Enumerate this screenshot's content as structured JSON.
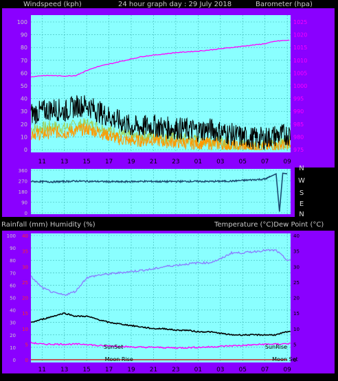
{
  "header": {
    "left_title": "Windspeed (kph)",
    "center_title": "24 hour graph day : 29 July 2018",
    "right_title": "Barometer (hpa)"
  },
  "lower_header": {
    "left_title": "Rainfall (mm)  Humidity (%)",
    "right_title": "Temperature (°C)Dew Point (°C)"
  },
  "time_ticks": [
    "11",
    "13",
    "15",
    "17",
    "19",
    "21",
    "23",
    "01",
    "03",
    "05",
    "07",
    "09"
  ],
  "direction_letters": [
    "N",
    "W",
    "S",
    "E",
    "N"
  ],
  "colors": {
    "background": "#000000",
    "panel_border": "#8a00ff",
    "plot_bg": "#8affff",
    "grid": "#3cb4b4",
    "wind_gust": "#000000",
    "wind_avg": "#ff9900",
    "wind_mid": "#a0d050",
    "barometer": "#ff00ff",
    "left_axis_red": "#ff2a2a",
    "temperature": "#000000",
    "humidity": "#8a80ff",
    "dewpoint": "#ff00ff",
    "rain": "#cc2222",
    "wind_dir": "#1a4a70"
  },
  "chart_data": [
    {
      "type": "line",
      "name": "wind-barometer",
      "x_ticks": [
        "11",
        "13",
        "15",
        "17",
        "19",
        "21",
        "23",
        "01",
        "03",
        "05",
        "07",
        "09"
      ],
      "y_left": {
        "label": "Windspeed (kph)",
        "ylim": [
          0,
          100
        ],
        "ticks": [
          0,
          10,
          20,
          30,
          40,
          50,
          60,
          70,
          80,
          90,
          100
        ]
      },
      "y_right": {
        "label": "Barometer (hpa)",
        "ylim": [
          975,
          1025
        ],
        "ticks": [
          975,
          980,
          985,
          990,
          995,
          1000,
          1005,
          1010,
          1015,
          1020,
          1025
        ]
      },
      "grid": true,
      "series": [
        {
          "hours": [
            10,
            11,
            12,
            13,
            14,
            15,
            16,
            17,
            18,
            19,
            20,
            21,
            22,
            23,
            24,
            25,
            26,
            27,
            28,
            29,
            30,
            31,
            32,
            33
          ],
          "values": [
            28,
            30,
            32,
            30,
            34,
            35,
            30,
            26,
            22,
            18,
            18,
            19,
            17,
            17,
            16,
            15,
            16,
            14,
            12,
            10,
            9,
            9,
            11,
            12
          ]
        },
        {
          "hours": [
            10,
            11,
            12,
            13,
            14,
            15,
            16,
            17,
            18,
            19,
            20,
            21,
            22,
            23,
            24,
            25,
            26,
            27,
            28,
            29,
            30,
            31,
            32,
            33
          ],
          "values": [
            13,
            12,
            14,
            13,
            15,
            16,
            14,
            11,
            8,
            7,
            7,
            8,
            6,
            6,
            5,
            5,
            5,
            4,
            3,
            2,
            2,
            2,
            3,
            4
          ]
        },
        {
          "hours": [
            10,
            11,
            12,
            13,
            14,
            15,
            16,
            17,
            18,
            19,
            20,
            21,
            22,
            23,
            24,
            25,
            26,
            27,
            28,
            29,
            30,
            31,
            32,
            33
          ],
          "values": [
            16,
            17,
            18,
            17,
            19,
            20,
            18,
            15,
            12,
            10,
            10,
            11,
            9,
            9,
            8,
            7,
            8,
            6,
            5,
            4,
            4,
            4,
            5,
            6
          ]
        },
        {
          "hours": [
            10,
            11,
            12,
            13,
            14,
            15,
            16,
            17,
            18,
            19,
            20,
            21,
            22,
            23,
            24,
            25,
            26,
            27,
            28,
            29,
            30,
            31,
            32,
            33
          ],
          "values": [
            1003.5,
            1004.0,
            1004.0,
            1003.8,
            1004.0,
            1006.0,
            1007.5,
            1008.5,
            1009.5,
            1010.5,
            1011.5,
            1012.0,
            1012.5,
            1013.0,
            1013.3,
            1013.6,
            1014.0,
            1014.5,
            1015.0,
            1015.5,
            1016.0,
            1016.5,
            1017.5,
            1017.8
          ]
        }
      ]
    },
    {
      "type": "line",
      "name": "wind-direction",
      "x_ticks": [
        "11",
        "13",
        "15",
        "17",
        "19",
        "21",
        "23",
        "01",
        "03",
        "05",
        "07",
        "09"
      ],
      "y_left": {
        "ylim": [
          0,
          360
        ],
        "ticks": [
          0,
          90,
          180,
          270,
          360
        ]
      },
      "series": [
        {
          "hours": [
            10,
            12,
            14,
            16,
            18,
            20,
            22,
            24,
            26,
            28,
            30,
            31,
            32,
            32.3,
            32.6,
            33
          ],
          "values": [
            265,
            262,
            268,
            265,
            262,
            266,
            264,
            266,
            265,
            268,
            280,
            285,
            330,
            10,
            335,
            330
          ]
        }
      ]
    },
    {
      "type": "line",
      "name": "temp-humidity",
      "x_ticks": [
        "11",
        "13",
        "15",
        "17",
        "19",
        "21",
        "23",
        "01",
        "03",
        "05",
        "07",
        "09"
      ],
      "y_left": {
        "label": "Rainfall (mm)  Humidity (%)",
        "ylim": [
          0,
          100
        ],
        "ticks": [
          0,
          10,
          20,
          30,
          40,
          50,
          60,
          70,
          80,
          90,
          100
        ]
      },
      "y_left_rain": {
        "ylim": [
          0,
          40
        ],
        "ticks": [
          0,
          5,
          10,
          15,
          20,
          25,
          30,
          35,
          40
        ]
      },
      "y_right": {
        "label": "Temperature (°C)Dew Point (°C)",
        "ylim": [
          0,
          40
        ],
        "ticks": [
          0,
          5,
          10,
          15,
          20,
          25,
          30,
          35,
          40
        ]
      },
      "annotations": [
        "SunSet",
        "SunRise",
        "Moon Rise",
        "Moon Set"
      ],
      "series": [
        {
          "hours": [
            10,
            11,
            12,
            13,
            14,
            15,
            16,
            17,
            18,
            19,
            20,
            21,
            22,
            23,
            24,
            25,
            26,
            27,
            28,
            29,
            30,
            31,
            32,
            33
          ],
          "values": [
            12,
            13,
            14,
            15,
            14,
            14,
            13,
            12,
            11.5,
            11,
            10.5,
            10,
            10,
            9.5,
            9.5,
            9,
            9,
            8.5,
            8,
            8,
            8,
            8,
            8,
            9
          ]
        },
        {
          "hours": [
            10,
            11,
            12,
            13,
            14,
            15,
            16,
            17,
            18,
            19,
            20,
            21,
            22,
            23,
            24,
            25,
            26,
            27,
            28,
            29,
            30,
            31,
            32,
            33
          ],
          "values": [
            67,
            58,
            54,
            52,
            55,
            66,
            68,
            69,
            70,
            71,
            72,
            73,
            75,
            76,
            77,
            78,
            78,
            81,
            86,
            86,
            87,
            88,
            88,
            80
          ]
        },
        {
          "hours": [
            10,
            11,
            12,
            13,
            14,
            15,
            16,
            17,
            18,
            19,
            20,
            21,
            22,
            23,
            24,
            25,
            26,
            27,
            28,
            29,
            30,
            31,
            32,
            33
          ],
          "values": [
            5.5,
            5,
            5,
            5,
            5,
            5,
            4.5,
            4.5,
            4.3,
            4.1,
            4,
            4,
            3.9,
            3.8,
            3.9,
            4,
            4.1,
            4.3,
            4.5,
            4.6,
            4.8,
            5,
            5,
            5.2
          ]
        },
        {
          "hours": [
            10,
            33
          ],
          "values": [
            0,
            0
          ]
        }
      ]
    }
  ]
}
